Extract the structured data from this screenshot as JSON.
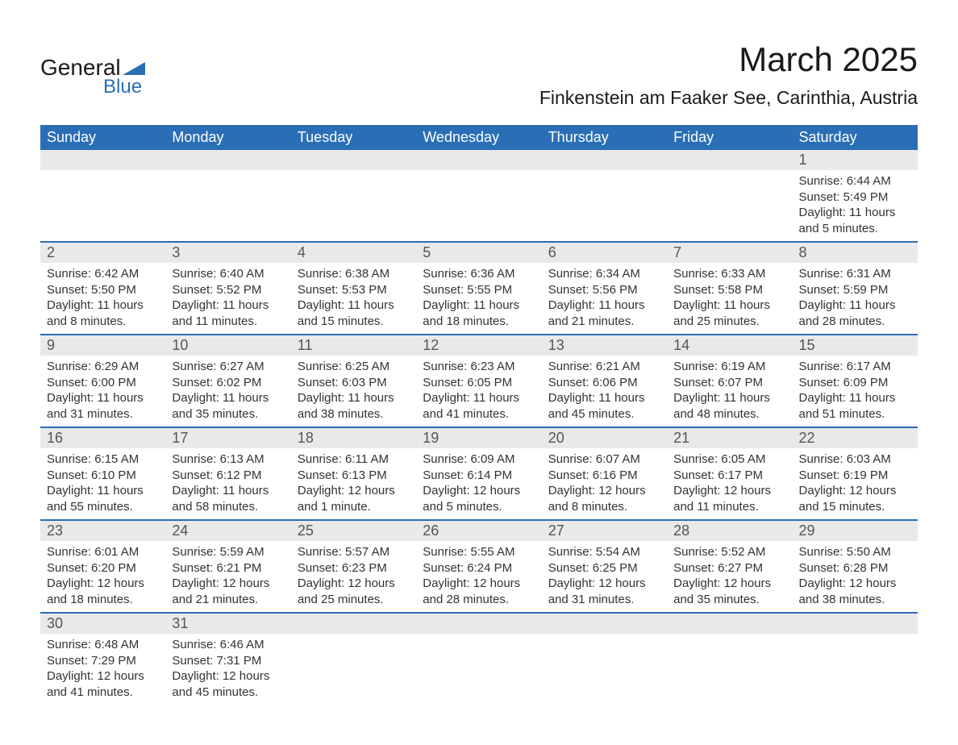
{
  "logo": {
    "text1": "General",
    "text2": "Blue",
    "triangle_color": "#2a6fb5"
  },
  "title": "March 2025",
  "location": "Finkenstein am Faaker See, Carinthia, Austria",
  "colors": {
    "header_bg": "#2a6fb5",
    "header_fg": "#ffffff",
    "daynum_bg": "#e9e9e9",
    "row_divider": "#2a6fb5",
    "text": "#333333"
  },
  "day_headers": [
    "Sunday",
    "Monday",
    "Tuesday",
    "Wednesday",
    "Thursday",
    "Friday",
    "Saturday"
  ],
  "weeks": [
    [
      {
        "n": "",
        "sr": "",
        "ss": "",
        "dl": ""
      },
      {
        "n": "",
        "sr": "",
        "ss": "",
        "dl": ""
      },
      {
        "n": "",
        "sr": "",
        "ss": "",
        "dl": ""
      },
      {
        "n": "",
        "sr": "",
        "ss": "",
        "dl": ""
      },
      {
        "n": "",
        "sr": "",
        "ss": "",
        "dl": ""
      },
      {
        "n": "",
        "sr": "",
        "ss": "",
        "dl": ""
      },
      {
        "n": "1",
        "sr": "Sunrise: 6:44 AM",
        "ss": "Sunset: 5:49 PM",
        "dl": "Daylight: 11 hours and 5 minutes."
      }
    ],
    [
      {
        "n": "2",
        "sr": "Sunrise: 6:42 AM",
        "ss": "Sunset: 5:50 PM",
        "dl": "Daylight: 11 hours and 8 minutes."
      },
      {
        "n": "3",
        "sr": "Sunrise: 6:40 AM",
        "ss": "Sunset: 5:52 PM",
        "dl": "Daylight: 11 hours and 11 minutes."
      },
      {
        "n": "4",
        "sr": "Sunrise: 6:38 AM",
        "ss": "Sunset: 5:53 PM",
        "dl": "Daylight: 11 hours and 15 minutes."
      },
      {
        "n": "5",
        "sr": "Sunrise: 6:36 AM",
        "ss": "Sunset: 5:55 PM",
        "dl": "Daylight: 11 hours and 18 minutes."
      },
      {
        "n": "6",
        "sr": "Sunrise: 6:34 AM",
        "ss": "Sunset: 5:56 PM",
        "dl": "Daylight: 11 hours and 21 minutes."
      },
      {
        "n": "7",
        "sr": "Sunrise: 6:33 AM",
        "ss": "Sunset: 5:58 PM",
        "dl": "Daylight: 11 hours and 25 minutes."
      },
      {
        "n": "8",
        "sr": "Sunrise: 6:31 AM",
        "ss": "Sunset: 5:59 PM",
        "dl": "Daylight: 11 hours and 28 minutes."
      }
    ],
    [
      {
        "n": "9",
        "sr": "Sunrise: 6:29 AM",
        "ss": "Sunset: 6:00 PM",
        "dl": "Daylight: 11 hours and 31 minutes."
      },
      {
        "n": "10",
        "sr": "Sunrise: 6:27 AM",
        "ss": "Sunset: 6:02 PM",
        "dl": "Daylight: 11 hours and 35 minutes."
      },
      {
        "n": "11",
        "sr": "Sunrise: 6:25 AM",
        "ss": "Sunset: 6:03 PM",
        "dl": "Daylight: 11 hours and 38 minutes."
      },
      {
        "n": "12",
        "sr": "Sunrise: 6:23 AM",
        "ss": "Sunset: 6:05 PM",
        "dl": "Daylight: 11 hours and 41 minutes."
      },
      {
        "n": "13",
        "sr": "Sunrise: 6:21 AM",
        "ss": "Sunset: 6:06 PM",
        "dl": "Daylight: 11 hours and 45 minutes."
      },
      {
        "n": "14",
        "sr": "Sunrise: 6:19 AM",
        "ss": "Sunset: 6:07 PM",
        "dl": "Daylight: 11 hours and 48 minutes."
      },
      {
        "n": "15",
        "sr": "Sunrise: 6:17 AM",
        "ss": "Sunset: 6:09 PM",
        "dl": "Daylight: 11 hours and 51 minutes."
      }
    ],
    [
      {
        "n": "16",
        "sr": "Sunrise: 6:15 AM",
        "ss": "Sunset: 6:10 PM",
        "dl": "Daylight: 11 hours and 55 minutes."
      },
      {
        "n": "17",
        "sr": "Sunrise: 6:13 AM",
        "ss": "Sunset: 6:12 PM",
        "dl": "Daylight: 11 hours and 58 minutes."
      },
      {
        "n": "18",
        "sr": "Sunrise: 6:11 AM",
        "ss": "Sunset: 6:13 PM",
        "dl": "Daylight: 12 hours and 1 minute."
      },
      {
        "n": "19",
        "sr": "Sunrise: 6:09 AM",
        "ss": "Sunset: 6:14 PM",
        "dl": "Daylight: 12 hours and 5 minutes."
      },
      {
        "n": "20",
        "sr": "Sunrise: 6:07 AM",
        "ss": "Sunset: 6:16 PM",
        "dl": "Daylight: 12 hours and 8 minutes."
      },
      {
        "n": "21",
        "sr": "Sunrise: 6:05 AM",
        "ss": "Sunset: 6:17 PM",
        "dl": "Daylight: 12 hours and 11 minutes."
      },
      {
        "n": "22",
        "sr": "Sunrise: 6:03 AM",
        "ss": "Sunset: 6:19 PM",
        "dl": "Daylight: 12 hours and 15 minutes."
      }
    ],
    [
      {
        "n": "23",
        "sr": "Sunrise: 6:01 AM",
        "ss": "Sunset: 6:20 PM",
        "dl": "Daylight: 12 hours and 18 minutes."
      },
      {
        "n": "24",
        "sr": "Sunrise: 5:59 AM",
        "ss": "Sunset: 6:21 PM",
        "dl": "Daylight: 12 hours and 21 minutes."
      },
      {
        "n": "25",
        "sr": "Sunrise: 5:57 AM",
        "ss": "Sunset: 6:23 PM",
        "dl": "Daylight: 12 hours and 25 minutes."
      },
      {
        "n": "26",
        "sr": "Sunrise: 5:55 AM",
        "ss": "Sunset: 6:24 PM",
        "dl": "Daylight: 12 hours and 28 minutes."
      },
      {
        "n": "27",
        "sr": "Sunrise: 5:54 AM",
        "ss": "Sunset: 6:25 PM",
        "dl": "Daylight: 12 hours and 31 minutes."
      },
      {
        "n": "28",
        "sr": "Sunrise: 5:52 AM",
        "ss": "Sunset: 6:27 PM",
        "dl": "Daylight: 12 hours and 35 minutes."
      },
      {
        "n": "29",
        "sr": "Sunrise: 5:50 AM",
        "ss": "Sunset: 6:28 PM",
        "dl": "Daylight: 12 hours and 38 minutes."
      }
    ],
    [
      {
        "n": "30",
        "sr": "Sunrise: 6:48 AM",
        "ss": "Sunset: 7:29 PM",
        "dl": "Daylight: 12 hours and 41 minutes."
      },
      {
        "n": "31",
        "sr": "Sunrise: 6:46 AM",
        "ss": "Sunset: 7:31 PM",
        "dl": "Daylight: 12 hours and 45 minutes."
      },
      {
        "n": "",
        "sr": "",
        "ss": "",
        "dl": ""
      },
      {
        "n": "",
        "sr": "",
        "ss": "",
        "dl": ""
      },
      {
        "n": "",
        "sr": "",
        "ss": "",
        "dl": ""
      },
      {
        "n": "",
        "sr": "",
        "ss": "",
        "dl": ""
      },
      {
        "n": "",
        "sr": "",
        "ss": "",
        "dl": ""
      }
    ]
  ]
}
